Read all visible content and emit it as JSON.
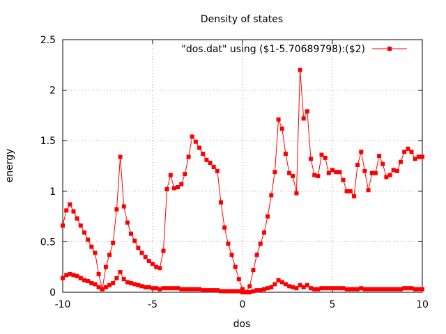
{
  "chart_data": {
    "type": "line",
    "title": "Density of states",
    "xlabel": "dos",
    "ylabel": "energy",
    "xlim": [
      -10,
      10
    ],
    "ylim": [
      0,
      2.5
    ],
    "xticks": [
      -10,
      -5,
      0,
      5,
      10
    ],
    "yticks": [
      0,
      0.5,
      1,
      1.5,
      2,
      2.5
    ],
    "grid": true,
    "legend_position": "top-right",
    "series_color": "#ff0000",
    "marker": "square",
    "series": [
      {
        "name": "\"dos.dat\" using ($1-5.70689798):($2)",
        "x": [
          -10.0,
          -9.8,
          -9.6,
          -9.4,
          -9.2,
          -9.0,
          -8.8,
          -8.6,
          -8.4,
          -8.2,
          -8.0,
          -7.8,
          -7.6,
          -7.4,
          -7.2,
          -7.0,
          -6.8,
          -6.6,
          -6.4,
          -6.2,
          -6.0,
          -5.8,
          -5.6,
          -5.4,
          -5.2,
          -5.0,
          -4.8,
          -4.6,
          -4.4,
          -4.2,
          -4.0,
          -3.8,
          -3.6,
          -3.4,
          -3.2,
          -3.0,
          -2.8,
          -2.6,
          -2.4,
          -2.2,
          -2.0,
          -1.8,
          -1.6,
          -1.4,
          -1.2,
          -1.0,
          -0.8,
          -0.6,
          -0.4,
          -0.2,
          0.0,
          0.2,
          0.4,
          0.6,
          0.8,
          1.0,
          1.2,
          1.4,
          1.6,
          1.8,
          2.0,
          2.2,
          2.4,
          2.6,
          2.8,
          3.0,
          3.2,
          3.4,
          3.6,
          3.8,
          4.0,
          4.2,
          4.4,
          4.6,
          4.8,
          5.0,
          5.2,
          5.4,
          5.6,
          5.8,
          6.0,
          6.2,
          6.4,
          6.6,
          6.8,
          7.0,
          7.2,
          7.4,
          7.6,
          7.8,
          8.0,
          8.2,
          8.4,
          8.6,
          8.8,
          9.0,
          9.2,
          9.4,
          9.6,
          9.8,
          10.0
        ],
        "y": [
          0.66,
          0.81,
          0.87,
          0.8,
          0.73,
          0.66,
          0.59,
          0.52,
          0.45,
          0.39,
          0.18,
          0.03,
          0.25,
          0.37,
          0.49,
          0.82,
          1.34,
          0.85,
          0.69,
          0.58,
          0.51,
          0.44,
          0.39,
          0.35,
          0.31,
          0.28,
          0.25,
          0.24,
          0.41,
          1.02,
          1.16,
          1.03,
          1.04,
          1.07,
          1.17,
          1.34,
          1.54,
          1.49,
          1.43,
          1.37,
          1.31,
          1.28,
          1.24,
          1.2,
          0.89,
          0.64,
          0.48,
          0.37,
          0.25,
          0.13,
          0.03,
          0.0,
          0.06,
          0.22,
          0.37,
          0.48,
          0.59,
          0.75,
          0.96,
          1.19,
          1.71,
          1.62,
          1.37,
          1.18,
          1.15,
          0.98,
          2.2,
          1.72,
          1.79,
          1.32,
          1.16,
          1.15,
          1.36,
          1.33,
          1.18,
          1.21,
          1.19,
          1.19,
          1.11,
          1.0,
          1.0,
          0.95,
          1.26,
          1.39,
          1.2,
          1.01,
          1.18,
          1.18,
          1.35,
          1.27,
          1.14,
          1.16,
          1.21,
          1.2,
          1.29,
          1.39,
          1.42,
          1.39,
          1.32,
          1.34,
          1.34
        ]
      },
      {
        "name": "",
        "x": [
          -10.0,
          -9.8,
          -9.6,
          -9.4,
          -9.2,
          -9.0,
          -8.8,
          -8.6,
          -8.4,
          -8.2,
          -8.0,
          -7.8,
          -7.6,
          -7.4,
          -7.2,
          -7.0,
          -6.8,
          -6.6,
          -6.4,
          -6.2,
          -6.0,
          -5.8,
          -5.6,
          -5.4,
          -5.2,
          -5.0,
          -4.8,
          -4.6,
          -4.4,
          -4.2,
          -4.0,
          -3.8,
          -3.6,
          -3.4,
          -3.2,
          -3.0,
          -2.8,
          -2.6,
          -2.4,
          -2.2,
          -2.0,
          -1.8,
          -1.6,
          -1.4,
          -1.2,
          -1.0,
          -0.8,
          -0.6,
          -0.4,
          -0.2,
          0.0,
          0.2,
          0.4,
          0.6,
          0.8,
          1.0,
          1.2,
          1.4,
          1.6,
          1.8,
          2.0,
          2.2,
          2.4,
          2.6,
          2.8,
          3.0,
          3.2,
          3.4,
          3.6,
          3.8,
          4.0,
          4.2,
          4.4,
          4.6,
          4.8,
          5.0,
          5.2,
          5.4,
          5.6,
          5.8,
          6.0,
          6.2,
          6.4,
          6.6,
          6.8,
          7.0,
          7.2,
          7.4,
          7.6,
          7.8,
          8.0,
          8.2,
          8.4,
          8.6,
          8.8,
          9.0,
          9.2,
          9.4,
          9.6,
          9.8,
          10.0
        ],
        "y": [
          0.14,
          0.17,
          0.18,
          0.17,
          0.16,
          0.14,
          0.12,
          0.11,
          0.09,
          0.08,
          0.05,
          0.03,
          0.05,
          0.07,
          0.09,
          0.14,
          0.2,
          0.13,
          0.1,
          0.09,
          0.08,
          0.07,
          0.06,
          0.05,
          0.05,
          0.04,
          0.04,
          0.03,
          0.04,
          0.04,
          0.04,
          0.04,
          0.04,
          0.03,
          0.03,
          0.03,
          0.03,
          0.03,
          0.03,
          0.02,
          0.02,
          0.02,
          0.02,
          0.02,
          0.01,
          0.01,
          0.01,
          0.01,
          0.01,
          0.01,
          0.0,
          0.0,
          0.0,
          0.01,
          0.02,
          0.02,
          0.03,
          0.04,
          0.05,
          0.08,
          0.12,
          0.1,
          0.08,
          0.06,
          0.05,
          0.04,
          0.07,
          0.05,
          0.07,
          0.04,
          0.03,
          0.03,
          0.04,
          0.04,
          0.04,
          0.04,
          0.04,
          0.04,
          0.04,
          0.03,
          0.03,
          0.03,
          0.03,
          0.04,
          0.03,
          0.03,
          0.03,
          0.03,
          0.03,
          0.03,
          0.03,
          0.03,
          0.03,
          0.03,
          0.03,
          0.04,
          0.04,
          0.04,
          0.03,
          0.03,
          0.03
        ]
      }
    ]
  }
}
